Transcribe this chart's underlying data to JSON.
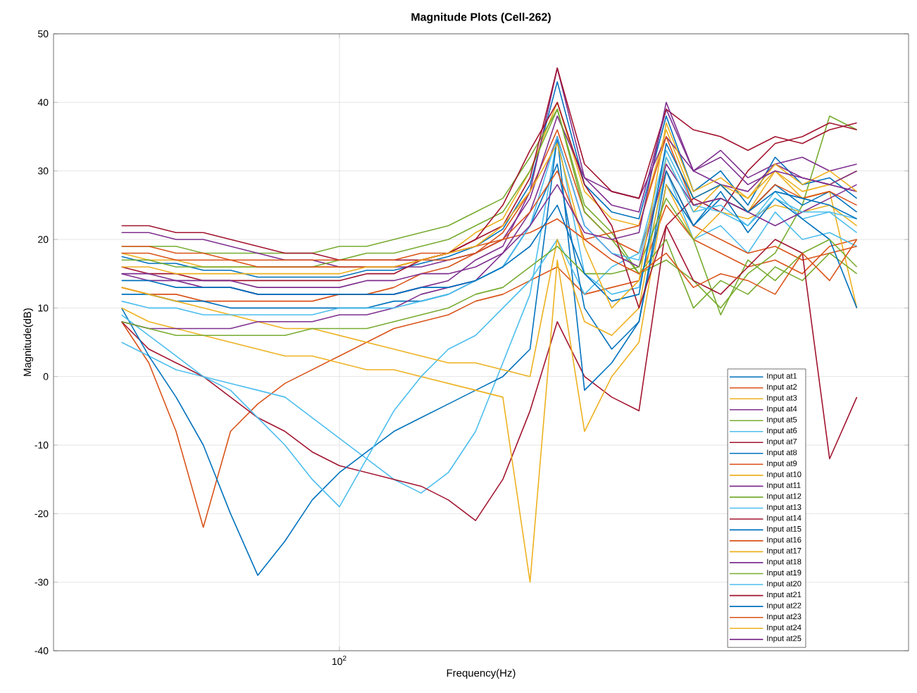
{
  "chart_data": {
    "type": "line",
    "title": "Magnitude Plots (Cell-262)",
    "xlabel": "Frequency(Hz)",
    "ylabel": "Magnitude(dB)",
    "grid": true,
    "legend": "bottom right",
    "ylim": [
      -40,
      50
    ],
    "yticks": [
      -40,
      -30,
      -20,
      -10,
      0,
      10,
      20,
      30,
      40,
      50
    ],
    "categories": [
      null,
      null,
      null,
      null,
      null,
      null,
      null,
      null,
      "10$^{2}$",
      null,
      null,
      null,
      null,
      null,
      null,
      null,
      null,
      null,
      null,
      null,
      null,
      null,
      null,
      null,
      null,
      null,
      null,
      null
    ],
    "series": [
      {
        "name": "Input at1",
        "color": "#0072bd",
        "values": [
          17.5,
          16.5,
          16.5,
          15.5,
          15.5,
          14.5,
          14.5,
          14.5,
          14.5,
          15.5,
          15.5,
          16.5,
          17.5,
          19,
          21.5,
          28,
          43,
          28,
          24,
          23,
          38,
          27,
          30,
          25,
          32,
          28,
          29,
          26
        ]
      },
      {
        "name": "Input at2",
        "color": "#d95319",
        "values": [
          8,
          2,
          -8,
          -22,
          -8,
          -4,
          -1,
          1,
          3,
          5,
          7,
          8,
          9,
          11,
          12,
          14,
          16,
          12,
          13,
          14,
          25,
          20,
          18,
          16,
          17,
          15,
          19,
          20
        ]
      },
      {
        "name": "Input at3",
        "color": "#edb120",
        "values": [
          18,
          17,
          17,
          16,
          16,
          16,
          16,
          16,
          16,
          16,
          16,
          17,
          18,
          21,
          23,
          30,
          40,
          27,
          23,
          22,
          36,
          26,
          28,
          24,
          30,
          26,
          27,
          10
        ]
      },
      {
        "name": "Input at4",
        "color": "#7e2f8e",
        "values": [
          15,
          14,
          14,
          13,
          13,
          12,
          12,
          12,
          12,
          12,
          12,
          13,
          14,
          17,
          19,
          27,
          45,
          29,
          25,
          24,
          39,
          30,
          28,
          27,
          31,
          29,
          28,
          27
        ]
      },
      {
        "name": "Input at5",
        "color": "#77ac30",
        "values": [
          19,
          19,
          19,
          18,
          18,
          18,
          18,
          18,
          19,
          19,
          20,
          21,
          22,
          24,
          26,
          32,
          39,
          25,
          21,
          15,
          17,
          14,
          10,
          15,
          18,
          25,
          38,
          36
        ]
      },
      {
        "name": "Input at6",
        "color": "#4dbeee",
        "values": [
          5,
          3,
          1,
          0,
          -1,
          -2,
          -3,
          -6,
          -9,
          -12,
          -15,
          -17,
          -14,
          -8,
          2,
          12,
          35,
          15,
          12,
          13,
          30,
          20,
          22,
          18,
          24,
          20,
          21,
          19
        ]
      },
      {
        "name": "Input at7",
        "color": "#a2142f",
        "values": [
          8,
          4,
          2,
          0,
          -3,
          -6,
          -8,
          -11,
          -13,
          -14,
          -15,
          -16,
          -18,
          -21,
          -15,
          -5,
          8,
          0,
          -3,
          -5,
          22,
          26,
          24,
          30,
          34,
          35,
          37,
          36
        ]
      },
      {
        "name": "Input at8",
        "color": "#0072bd",
        "values": [
          10,
          3,
          -3,
          -10,
          -20,
          -29,
          -24,
          -18,
          -14,
          -11,
          -8,
          -6,
          -4,
          -2,
          0,
          4,
          35,
          -2,
          2,
          8,
          28,
          22,
          26,
          24,
          28,
          25,
          27,
          24
        ]
      },
      {
        "name": "Input at9",
        "color": "#d95319",
        "values": [
          13,
          12,
          12,
          11,
          11,
          11,
          11,
          11,
          12,
          12,
          13,
          15,
          16,
          18,
          21,
          27,
          36,
          24,
          20,
          18,
          30,
          22,
          20,
          18,
          19,
          17,
          18,
          19
        ]
      },
      {
        "name": "Input at10",
        "color": "#edb120",
        "values": [
          10,
          8,
          7,
          6,
          5,
          4,
          3,
          3,
          2,
          1,
          1,
          0,
          -1,
          -2,
          -3,
          -30,
          17,
          -8,
          0,
          5,
          28,
          20,
          24,
          23,
          25,
          24,
          25,
          22
        ]
      },
      {
        "name": "Input at11",
        "color": "#7e2f8e",
        "values": [
          21,
          21,
          20,
          20,
          19,
          18,
          17,
          17,
          16,
          16,
          16,
          16,
          17,
          18,
          20,
          26,
          38,
          29,
          27,
          26,
          35,
          30,
          33,
          29,
          31,
          32,
          30,
          31
        ]
      },
      {
        "name": "Input at12",
        "color": "#77ac30",
        "values": [
          17,
          17,
          16,
          16,
          16,
          16,
          16,
          16,
          17,
          18,
          18,
          19,
          20,
          22,
          24,
          30,
          39,
          24,
          20,
          15,
          20,
          10,
          14,
          12,
          16,
          14,
          18,
          15
        ]
      },
      {
        "name": "Input at13",
        "color": "#4dbeee",
        "values": [
          9,
          6,
          3,
          0,
          -2,
          -6,
          -10,
          -15,
          -19,
          -12,
          -5,
          0,
          4,
          6,
          10,
          14,
          20,
          12,
          16,
          18,
          33,
          25,
          24,
          22,
          27,
          23,
          24,
          21
        ]
      },
      {
        "name": "Input at14",
        "color": "#a2142f",
        "values": [
          22,
          22,
          21,
          21,
          20,
          19,
          18,
          18,
          17,
          17,
          17,
          17,
          18,
          20,
          22,
          29,
          45,
          31,
          27,
          26,
          39,
          36,
          35,
          33,
          35,
          34,
          36,
          37
        ]
      },
      {
        "name": "Input at15",
        "color": "#0072bd",
        "values": [
          12,
          12,
          11,
          11,
          10,
          10,
          10,
          10,
          10,
          10,
          11,
          11,
          12,
          14,
          16,
          22,
          31,
          10,
          4,
          8,
          30,
          22,
          27,
          21,
          26,
          23,
          20,
          10
        ]
      },
      {
        "name": "Input at16",
        "color": "#d95319",
        "values": [
          19,
          19,
          18,
          18,
          17,
          17,
          17,
          17,
          17,
          17,
          17,
          18,
          18,
          19,
          20,
          21,
          23,
          20,
          21,
          22,
          35,
          25,
          26,
          24,
          28,
          26,
          27,
          25
        ]
      },
      {
        "name": "Input at17",
        "color": "#edb120",
        "values": [
          13,
          12,
          11,
          10,
          9,
          8,
          7,
          7,
          6,
          5,
          4,
          3,
          2,
          2,
          1,
          0,
          20,
          8,
          6,
          10,
          32,
          24,
          28,
          26,
          30,
          27,
          28,
          30
        ]
      },
      {
        "name": "Input at18",
        "color": "#7e2f8e",
        "values": [
          8,
          7,
          7,
          7,
          7,
          8,
          8,
          8,
          9,
          9,
          10,
          12,
          13,
          14,
          18,
          24,
          35,
          22,
          18,
          16,
          31,
          25,
          26,
          24,
          22,
          24,
          26,
          28
        ]
      },
      {
        "name": "Input at19",
        "color": "#77ac30",
        "values": [
          8,
          7,
          6,
          6,
          6,
          6,
          6,
          7,
          7,
          7,
          8,
          9,
          10,
          12,
          13,
          16,
          19,
          15,
          15,
          16,
          26,
          20,
          9,
          17,
          14,
          18,
          20,
          16
        ]
      },
      {
        "name": "Input at20",
        "color": "#4dbeee",
        "values": [
          11,
          10,
          10,
          9,
          9,
          9,
          9,
          9,
          10,
          10,
          10,
          11,
          12,
          14,
          16,
          22,
          35,
          22,
          18,
          17,
          32,
          24,
          25,
          22,
          26,
          24,
          24,
          23
        ]
      },
      {
        "name": "Input at21",
        "color": "#a2142f",
        "values": [
          16,
          15,
          15,
          14,
          14,
          14,
          14,
          14,
          14,
          15,
          15,
          17,
          18,
          20,
          25,
          33,
          40,
          28,
          22,
          10,
          22,
          14,
          12,
          16,
          20,
          18,
          -12,
          -3
        ]
      },
      {
        "name": "Input at22",
        "color": "#0072bd",
        "values": [
          14,
          14,
          13,
          13,
          13,
          12,
          12,
          12,
          12,
          12,
          12,
          13,
          13,
          14,
          16,
          19,
          25,
          15,
          11,
          12,
          34,
          26,
          28,
          24,
          27,
          26,
          25,
          23
        ]
      },
      {
        "name": "Input at23",
        "color": "#d95319",
        "values": [
          18,
          18,
          17,
          17,
          17,
          16,
          16,
          16,
          16,
          16,
          16,
          17,
          17,
          18,
          20,
          24,
          30,
          20,
          17,
          15,
          18,
          13,
          15,
          14,
          12,
          18,
          14,
          20
        ]
      },
      {
        "name": "Input at24",
        "color": "#edb120",
        "values": [
          16,
          16,
          15,
          15,
          15,
          15,
          15,
          15,
          15,
          16,
          16,
          17,
          18,
          19,
          22,
          27,
          34,
          19,
          10,
          14,
          37,
          27,
          29,
          26,
          31,
          28,
          30,
          27
        ]
      },
      {
        "name": "Input at25",
        "color": "#7e2f8e",
        "values": [
          15,
          15,
          14,
          14,
          14,
          13,
          13,
          13,
          13,
          14,
          14,
          15,
          15,
          16,
          18,
          22,
          28,
          21,
          20,
          21,
          40,
          30,
          32,
          28,
          30,
          29,
          28,
          30
        ]
      }
    ]
  }
}
